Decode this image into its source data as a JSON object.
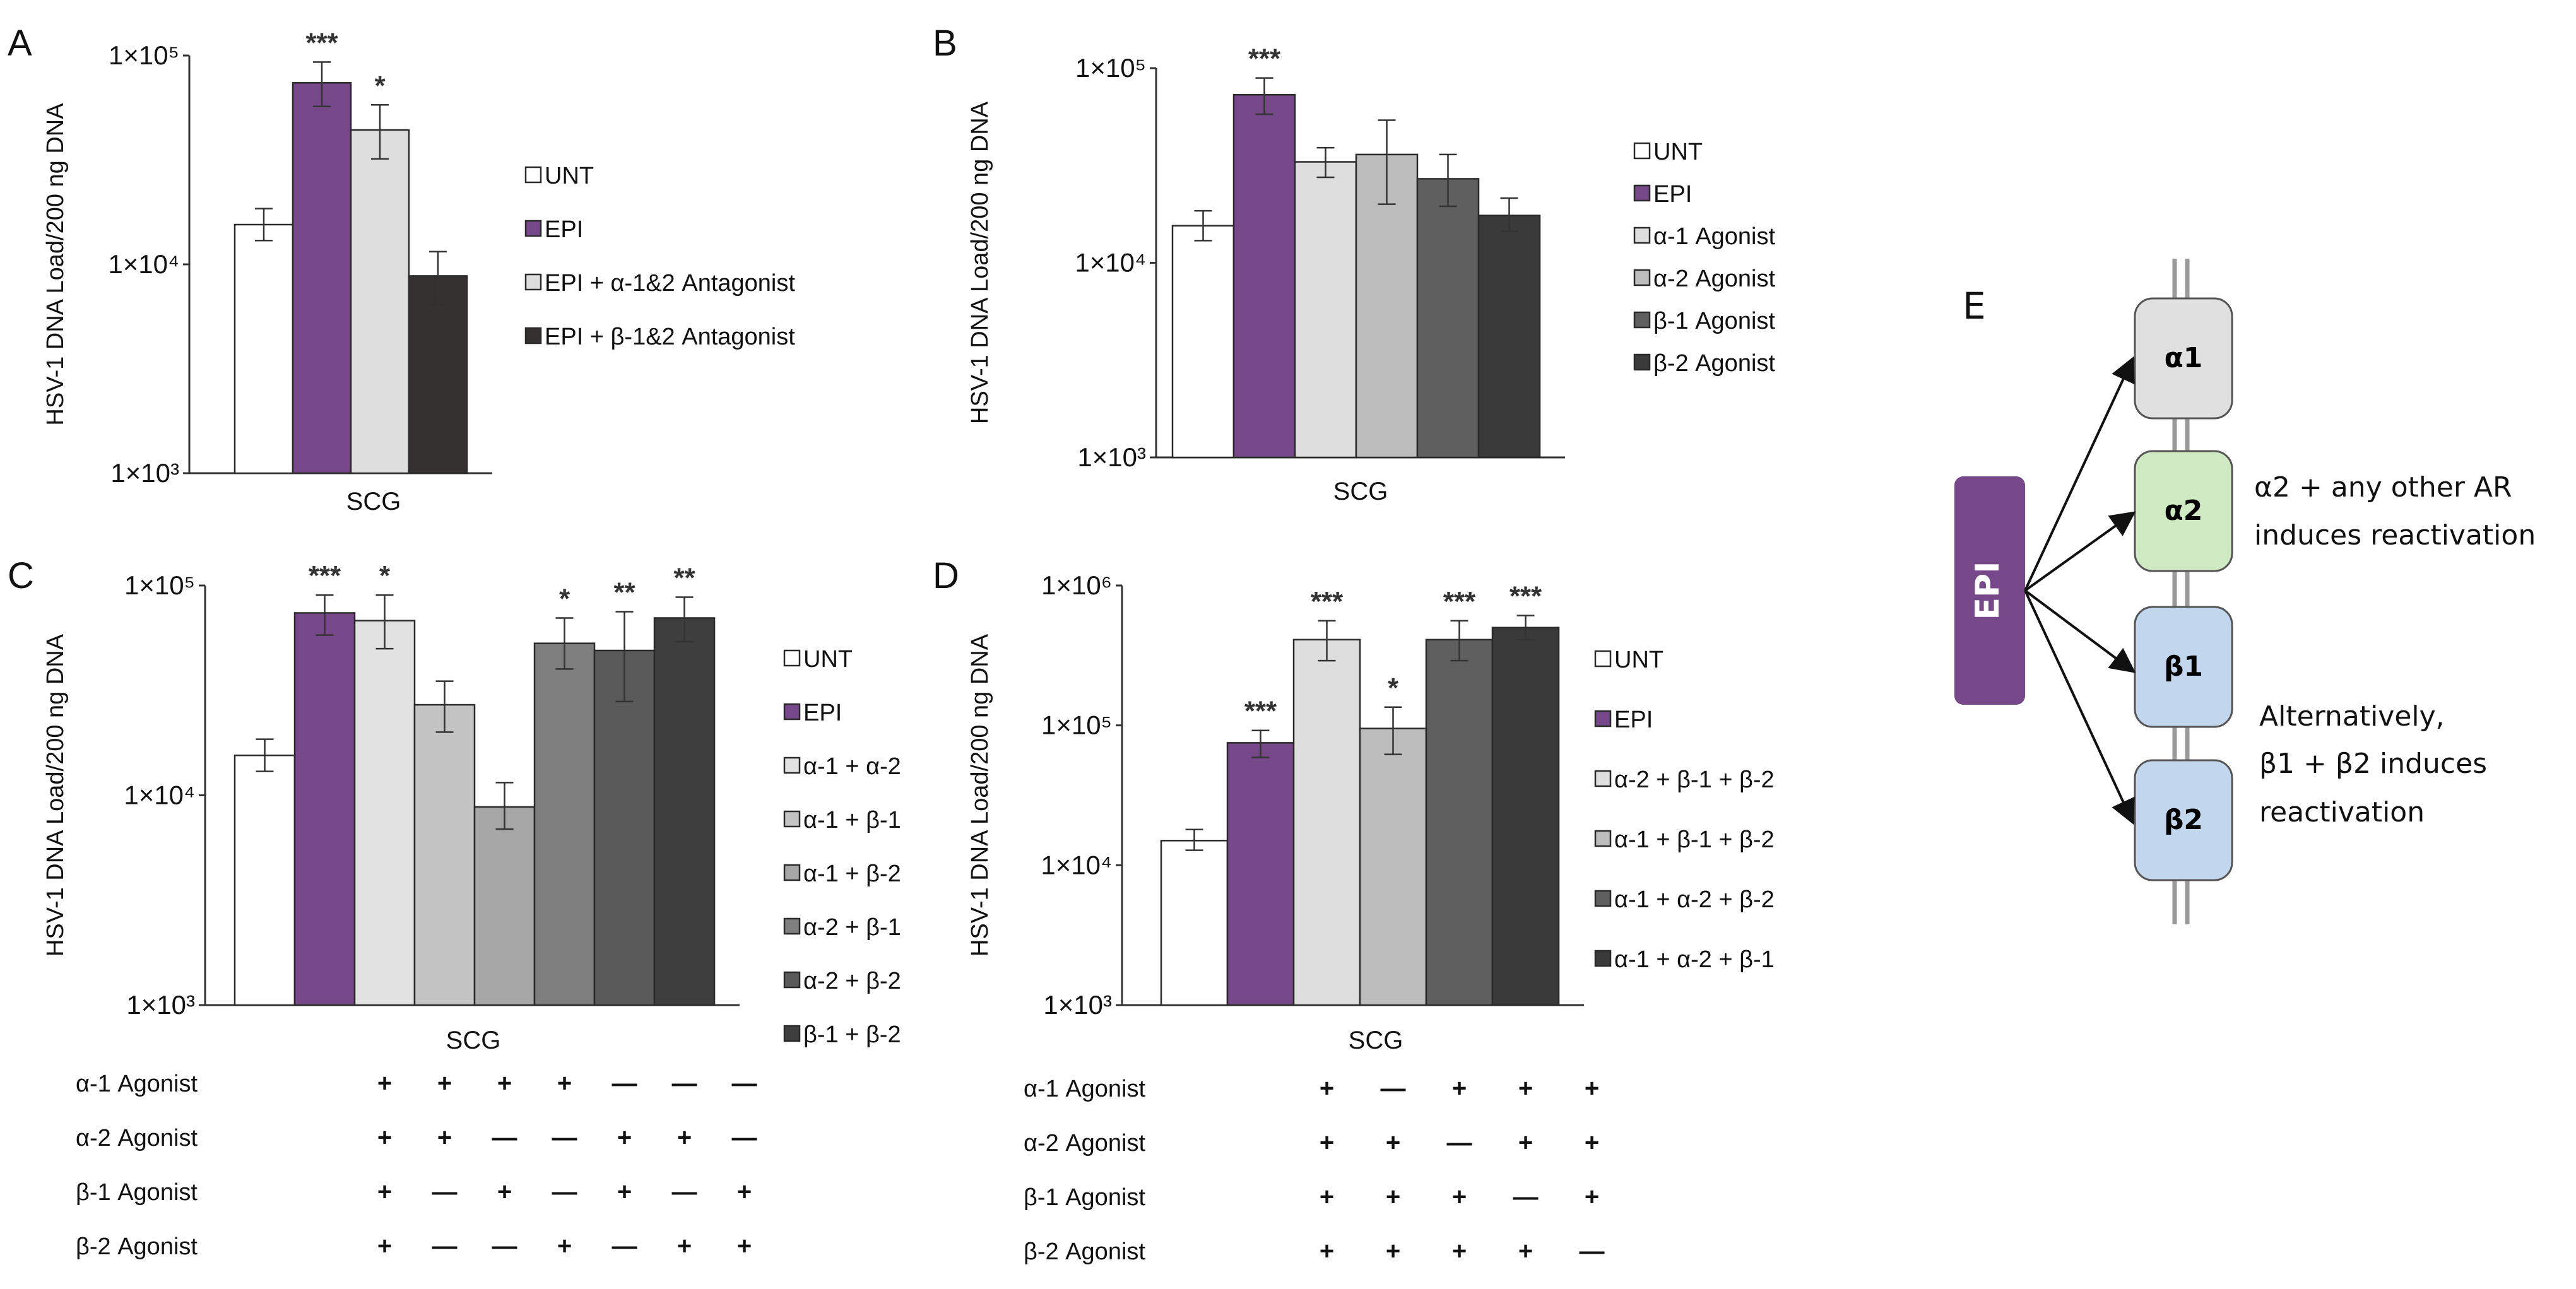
{
  "figure": {
    "y_axis_label": "HSV-1 DNA Load/200 ng DNA",
    "x_label": "SCG",
    "tick_labels": {
      "t3": "1×10³",
      "t4": "1×10⁴",
      "t5": "1×10⁵",
      "t6": "1×10⁶"
    },
    "colors": {
      "UNT": "#ffffff",
      "EPI": "#764889",
      "light": "#dedede",
      "light2": "#d2d2d2",
      "mid": "#bcbcbc",
      "mid2": "#a6a6a6",
      "dark": "#5f5f5f",
      "darker": "#4a4a4a",
      "darkest": "#3a3a3a",
      "dark_brown": "#353030"
    }
  },
  "chart_data": [
    {
      "panel": "A",
      "type": "bar",
      "scale": "log",
      "ylim": [
        1000,
        100000
      ],
      "xlabel": "SCG",
      "ylabel": "HSV-1 DNA Load/200 ng DNA",
      "series": [
        {
          "name": "UNT",
          "value": 15500,
          "err_low": 13000,
          "err_high": 18500,
          "sig": "",
          "color": "#ffffff"
        },
        {
          "name": "EPI",
          "value": 74000,
          "err_low": 57000,
          "err_high": 93000,
          "sig": "***",
          "color": "#764889"
        },
        {
          "name": "EPI + α-1&2 Antagonist",
          "value": 44000,
          "err_low": 32000,
          "err_high": 58000,
          "sig": "*",
          "color": "#dedede"
        },
        {
          "name": "EPI + β-1&2 Antagonist",
          "value": 8800,
          "err_low": 6200,
          "err_high": 11500,
          "sig": "",
          "color": "#353030"
        }
      ]
    },
    {
      "panel": "B",
      "type": "bar",
      "scale": "log",
      "ylim": [
        1000,
        100000
      ],
      "xlabel": "SCG",
      "ylabel": "HSV-1 DNA Load/200 ng DNA",
      "series": [
        {
          "name": "UNT",
          "value": 15500,
          "err_low": 13000,
          "err_high": 18500,
          "sig": "",
          "color": "#ffffff"
        },
        {
          "name": "EPI",
          "value": 73000,
          "err_low": 58000,
          "err_high": 89000,
          "sig": "***",
          "color": "#764889"
        },
        {
          "name": "α-1 Agonist",
          "value": 33000,
          "err_low": 27500,
          "err_high": 39000,
          "sig": "",
          "color": "#dedede"
        },
        {
          "name": "α-2 Agonist",
          "value": 36000,
          "err_low": 20000,
          "err_high": 54000,
          "sig": "",
          "color": "#bcbcbc"
        },
        {
          "name": "β-1 Agonist",
          "value": 27000,
          "err_low": 19500,
          "err_high": 36000,
          "sig": "",
          "color": "#5f5f5f"
        },
        {
          "name": "β-2 Agonist",
          "value": 17500,
          "err_low": 14500,
          "err_high": 21500,
          "sig": "",
          "color": "#3a3a3a"
        }
      ]
    },
    {
      "panel": "C",
      "type": "bar",
      "scale": "log",
      "ylim": [
        1000,
        100000
      ],
      "xlabel": "SCG",
      "ylabel": "HSV-1 DNA Load/200 ng DNA",
      "series": [
        {
          "name": "UNT",
          "value": 15500,
          "err_low": 13000,
          "err_high": 18500,
          "sig": "",
          "color": "#ffffff"
        },
        {
          "name": "EPI",
          "value": 74000,
          "err_low": 58000,
          "err_high": 90000,
          "sig": "***",
          "color": "#764889"
        },
        {
          "name": "α-1 + α-2",
          "value": 68000,
          "err_low": 50000,
          "err_high": 90000,
          "sig": "*",
          "color": "#e2e2e2"
        },
        {
          "name": "α-1 + β-1",
          "value": 27000,
          "err_low": 20000,
          "err_high": 35000,
          "sig": "",
          "color": "#c4c4c4"
        },
        {
          "name": "α-1 + β-2",
          "value": 8800,
          "err_low": 6900,
          "err_high": 11500,
          "sig": "",
          "color": "#a6a6a6"
        },
        {
          "name": "α-2 + β-1",
          "value": 53000,
          "err_low": 40000,
          "err_high": 70000,
          "sig": "*",
          "color": "#7e7e7e"
        },
        {
          "name": "α-2 + β-2",
          "value": 49000,
          "err_low": 28000,
          "err_high": 75000,
          "sig": "**",
          "color": "#5a5a5a"
        },
        {
          "name": "β-1 + β-2",
          "value": 70000,
          "err_low": 54000,
          "err_high": 88000,
          "sig": "**",
          "color": "#3e3e3e"
        }
      ],
      "treatment_table": {
        "rows": [
          {
            "label": "α-1 Agonist",
            "marks": [
              "+",
              "+",
              "+",
              "+",
              "—",
              "—",
              "—"
            ]
          },
          {
            "label": "α-2 Agonist",
            "marks": [
              "+",
              "+",
              "—",
              "—",
              "+",
              "+",
              "—"
            ]
          },
          {
            "label": "β-1 Agonist",
            "marks": [
              "+",
              "—",
              "+",
              "—",
              "+",
              "—",
              "+"
            ]
          },
          {
            "label": "β-2 Agonist",
            "marks": [
              "+",
              "—",
              "—",
              "+",
              "—",
              "+",
              "+"
            ]
          }
        ]
      }
    },
    {
      "panel": "D",
      "type": "bar",
      "scale": "log",
      "ylim": [
        1000,
        1000000
      ],
      "xlabel": "SCG",
      "ylabel": "HSV-1 DNA Load/200 ng DNA",
      "series": [
        {
          "name": "UNT",
          "value": 15000,
          "err_low": 12800,
          "err_high": 18000,
          "sig": "",
          "color": "#ffffff"
        },
        {
          "name": "EPI",
          "value": 75000,
          "err_low": 59000,
          "err_high": 92000,
          "sig": "***",
          "color": "#764889"
        },
        {
          "name": "α-2 + β-1 + β-2",
          "value": 410000,
          "err_low": 290000,
          "err_high": 560000,
          "sig": "***",
          "color": "#dedede"
        },
        {
          "name": "α-1 + β-1 + β-2",
          "value": 95000,
          "err_low": 62000,
          "err_high": 135000,
          "sig": "*",
          "color": "#bcbcbc"
        },
        {
          "name": "α-1 + α-2 + β-2",
          "value": 410000,
          "err_low": 290000,
          "err_high": 560000,
          "sig": "***",
          "color": "#5f5f5f"
        },
        {
          "name": "α-1 + α-2 + β-1",
          "value": 500000,
          "err_low": 410000,
          "err_high": 610000,
          "sig": "***",
          "color": "#3a3a3a"
        }
      ],
      "treatment_table": {
        "rows": [
          {
            "label": "α-1 Agonist",
            "marks": [
              "+",
              "—",
              "+",
              "+",
              "+"
            ]
          },
          {
            "label": "α-2 Agonist",
            "marks": [
              "+",
              "+",
              "—",
              "+",
              "+"
            ]
          },
          {
            "label": "β-1 Agonist",
            "marks": [
              "+",
              "+",
              "+",
              "—",
              "+"
            ]
          },
          {
            "label": "β-2 Agonist",
            "marks": [
              "+",
              "+",
              "+",
              "+",
              "—"
            ]
          }
        ]
      }
    }
  ],
  "diagram": {
    "panel_letter": "E",
    "epi_label": "EPI",
    "receptors": [
      {
        "label": "α1",
        "color": "#e0e0e0"
      },
      {
        "label": "α2",
        "color": "#cfe9c3"
      },
      {
        "label": "β1",
        "color": "#c2d6ee"
      },
      {
        "label": "β2",
        "color": "#c2d6ee"
      }
    ],
    "note1_line1": "α2 + any other AR",
    "note1_line2": "induces reactivation",
    "note2_line1": "Alternatively,",
    "note2_line2": "β1 + β2 induces",
    "note2_line3": "reactivation"
  }
}
